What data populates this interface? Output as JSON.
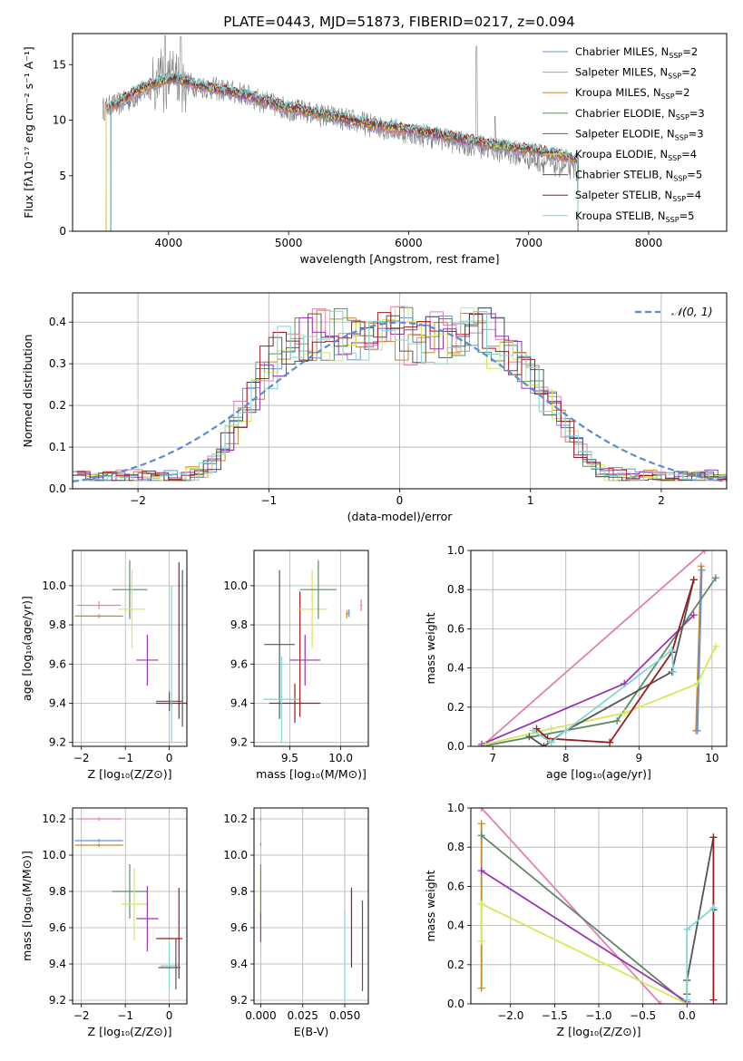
{
  "figure_title": "PLATE=0443, MJD=51873, FIBERID=0217, z=0.094",
  "colors": {
    "Chabrier MILES": "#6a8fd6",
    "Salpeter MILES": "#e27fb2",
    "Kroupa MILES": "#c5882a",
    "Chabrier ELODIE": "#5f8a64",
    "Salpeter ELODIE": "#9a35b0",
    "Kroupa ELODIE": "#d4e85a",
    "Chabrier STELIB": "#555555",
    "Salpeter STELIB": "#9a1c1c",
    "Kroupa STELIB": "#7fd6d6",
    "data": "#808080",
    "normal": "#5b8bd6"
  },
  "chart_data": [
    {
      "id": "spectrum",
      "type": "line",
      "title": "",
      "xlabel": "wavelength [Angstrom, rest frame]",
      "ylabel": "Flux [fλ10⁻¹⁷ erg cm⁻² s⁻¹ A⁻¹]",
      "xlim": [
        3200,
        8650
      ],
      "ylim": [
        0,
        17.8
      ],
      "xticks": [
        4000,
        5000,
        6000,
        7000,
        8000
      ],
      "yticks": [
        0,
        5,
        10,
        15
      ],
      "legend_position": "top-right",
      "legend": [
        {
          "name": "Chabrier MILES, N",
          "sub": "SSP",
          "suffix": "=2"
        },
        {
          "name": "Salpeter MILES, N",
          "sub": "SSP",
          "suffix": "=2"
        },
        {
          "name": "Kroupa MILES, N",
          "sub": "SSP",
          "suffix": "=2"
        },
        {
          "name": "Chabrier ELODIE, N",
          "sub": "SSP",
          "suffix": "=3"
        },
        {
          "name": "Salpeter ELODIE, N",
          "sub": "SSP",
          "suffix": "=3"
        },
        {
          "name": "Kroupa ELODIE, N",
          "sub": "SSP",
          "suffix": "=4"
        },
        {
          "name": "Chabrier STELIB, N",
          "sub": "SSP",
          "suffix": "=5"
        },
        {
          "name": "Salpeter STELIB, N",
          "sub": "SSP",
          "suffix": "=4"
        },
        {
          "name": "Kroupa STELIB, N",
          "sub": "SSP",
          "suffix": "=5"
        }
      ],
      "data_envelope_x": [
        3450,
        3500,
        3600,
        3700,
        3800,
        3900,
        3950,
        4000,
        4100,
        4200,
        4300,
        4400,
        4500,
        4600,
        4700,
        4800,
        4900,
        5000,
        5100,
        5200,
        5300,
        5400,
        5500,
        5600,
        5700,
        5800,
        5900,
        6000,
        6100,
        6200,
        6300,
        6400,
        6500,
        6600,
        6700,
        6800,
        6900,
        7000,
        7100,
        7200,
        7300,
        7400
      ],
      "data_envelope_y": [
        11.0,
        11.2,
        11.5,
        12.0,
        12.6,
        13.2,
        13.5,
        13.8,
        13.5,
        13.2,
        13.0,
        12.8,
        12.6,
        12.4,
        12.0,
        11.6,
        11.3,
        11.0,
        10.8,
        10.6,
        10.4,
        10.2,
        10.0,
        9.8,
        9.5,
        9.3,
        9.1,
        8.9,
        8.7,
        8.5,
        8.3,
        8.0,
        7.8,
        7.6,
        7.4,
        7.2,
        6.9,
        6.6,
        6.3,
        6.0,
        5.8,
        5.6
      ],
      "model_x": [
        3450,
        3550,
        3700,
        3850,
        3950,
        4050,
        4150,
        4300,
        4500,
        4700,
        4900,
        5100,
        5300,
        5500,
        5700,
        5900,
        6100,
        6300,
        6500,
        6700,
        6900,
        7100,
        7300,
        7420
      ],
      "model_y": [
        11.2,
        11.4,
        12.4,
        13.2,
        13.6,
        13.8,
        13.4,
        13.0,
        12.6,
        12.1,
        11.4,
        10.9,
        10.5,
        10.0,
        9.6,
        9.3,
        9.0,
        8.6,
        8.2,
        7.8,
        7.5,
        7.2,
        6.8,
        6.4
      ]
    },
    {
      "id": "residuals",
      "type": "line",
      "title": "",
      "xlabel": "(data-model)/error",
      "ylabel": "Normed distribution",
      "xlim": [
        -2.5,
        2.5
      ],
      "ylim": [
        0,
        0.47
      ],
      "xticks": [
        -2,
        -1,
        0,
        1,
        2
      ],
      "yticks": [
        0.0,
        0.1,
        0.2,
        0.3,
        0.4
      ],
      "grid": true,
      "legend_position": "top-right",
      "legend_label": "𝒩(0, 1)"
    },
    {
      "id": "age-vs-Z",
      "type": "scatter",
      "title": "",
      "xlabel": "Z [log₁₀(Z/Z⊙)]",
      "ylabel": "age  [log₁₀(age/yr)]",
      "xlim": [
        -2.2,
        0.4
      ],
      "ylim": [
        9.18,
        10.18
      ],
      "xticks": [
        -2,
        -1,
        0
      ],
      "yticks": [
        9.2,
        9.4,
        9.6,
        9.8,
        10.0
      ],
      "grid": true,
      "points": [
        {
          "model": "Salpeter MILES",
          "x": -1.6,
          "xerr": 0.5,
          "y": 9.9,
          "yerr": 0.02
        },
        {
          "model": "Kroupa MILES",
          "x": -1.6,
          "xerr": 0.55,
          "y": 9.845,
          "yerr": 0.01
        },
        {
          "model": "Chabrier ELODIE",
          "x": -0.9,
          "xerr": 0.4,
          "y": 9.98,
          "yerr": 0.15
        },
        {
          "model": "Kroupa ELODIE",
          "x": -0.85,
          "xerr": 0.3,
          "y": 9.88,
          "yerr": 0.2
        },
        {
          "model": "Salpeter ELODIE",
          "x": -0.5,
          "xerr": 0.25,
          "y": 9.62,
          "yerr": 0.13
        },
        {
          "model": "Chabrier STELIB",
          "x": 0.0,
          "xerr": 0.3,
          "y": 9.41,
          "yerr": 0.05
        },
        {
          "model": "Salpeter STELIB",
          "x": 0.05,
          "xerr": 0.35,
          "y": 9.4,
          "yerr": 0.02
        },
        {
          "model": "Salpeter STELIB",
          "x": 0.22,
          "xerr": 0.0,
          "y": 9.72,
          "yerr": 0.4
        },
        {
          "model": "Kroupa STELIB",
          "x": 0.05,
          "xerr": 0.0,
          "y": 9.6,
          "yerr": 0.4
        },
        {
          "model": "Chabrier STELIB",
          "x": 0.3,
          "xerr": 0.0,
          "y": 9.68,
          "yerr": 0.4
        }
      ]
    },
    {
      "id": "age-vs-mass",
      "type": "scatter",
      "title": "",
      "xlabel": "mass [log₁₀(M/M⊙)]",
      "ylabel": "",
      "xlim": [
        9.15,
        10.27
      ],
      "ylim": [
        9.18,
        10.18
      ],
      "xticks": [
        9.5,
        10.0
      ],
      "yticks": [
        9.2,
        9.4,
        9.6,
        9.8,
        10.0
      ],
      "grid": true,
      "points": [
        {
          "model": "Salpeter STELIB",
          "x": 9.55,
          "xerr": 0.25,
          "y": 9.4,
          "yerr": 0.1
        },
        {
          "model": "Chabrier STELIB",
          "x": 9.4,
          "xerr": 0.15,
          "y": 9.7,
          "yerr": 0.38
        },
        {
          "model": "Kroupa STELIB",
          "x": 9.42,
          "xerr": 0.18,
          "y": 9.42,
          "yerr": 0.22
        },
        {
          "model": "Salpeter STELIB",
          "x": 9.6,
          "xerr": 0.0,
          "y": 9.65,
          "yerr": 0.32
        },
        {
          "model": "Salpeter ELODIE",
          "x": 9.65,
          "xerr": 0.15,
          "y": 9.62,
          "yerr": 0.13
        },
        {
          "model": "Kroupa ELODIE",
          "x": 9.72,
          "xerr": 0.15,
          "y": 9.88,
          "yerr": 0.2
        },
        {
          "model": "Chabrier ELODIE",
          "x": 9.78,
          "xerr": 0.18,
          "y": 9.98,
          "yerr": 0.15
        },
        {
          "model": "Kroupa MILES",
          "x": 10.06,
          "xerr": 0.01,
          "y": 9.855,
          "yerr": 0.02
        },
        {
          "model": "Chabrier MILES",
          "x": 10.08,
          "xerr": 0.01,
          "y": 9.86,
          "yerr": 0.02
        },
        {
          "model": "Salpeter MILES",
          "x": 10.2,
          "xerr": 0.01,
          "y": 9.9,
          "yerr": 0.03
        }
      ]
    },
    {
      "id": "weight-vs-age",
      "type": "line",
      "title": "",
      "xlabel": "age  [log₁₀(age/yr)]",
      "ylabel": "mass weight",
      "xlim": [
        6.7,
        10.2
      ],
      "ylim": [
        0,
        1
      ],
      "xticks": [
        7,
        8,
        9,
        10
      ],
      "yticks": [
        0.0,
        0.2,
        0.4,
        0.6,
        0.8,
        1.0
      ],
      "grid": true,
      "series": [
        {
          "model": "Salpeter MILES",
          "x": [
            6.85,
            9.9
          ],
          "y": [
            0.0,
            1.0
          ]
        },
        {
          "model": "Kroupa MILES",
          "x": [
            9.78,
            9.85
          ],
          "y": [
            0.08,
            0.92
          ]
        },
        {
          "model": "Chabrier MILES",
          "x": [
            9.8,
            9.86
          ],
          "y": [
            0.08,
            0.9
          ]
        },
        {
          "model": "Chabrier ELODIE",
          "x": [
            6.85,
            8.7,
            10.05
          ],
          "y": [
            0.0,
            0.13,
            0.86
          ]
        },
        {
          "model": "Salpeter ELODIE",
          "x": [
            6.85,
            8.8,
            9.75
          ],
          "y": [
            0.01,
            0.32,
            0.67
          ]
        },
        {
          "model": "Kroupa ELODIE",
          "x": [
            6.9,
            7.8,
            8.8,
            9.8,
            10.05
          ],
          "y": [
            0.01,
            0.09,
            0.17,
            0.32,
            0.51
          ]
        },
        {
          "model": "Chabrier STELIB",
          "x": [
            7.5,
            7.7,
            8.0,
            9.45,
            9.75
          ],
          "y": [
            0.05,
            0.0,
            0.08,
            0.38,
            0.85
          ]
        },
        {
          "model": "Salpeter STELIB",
          "x": [
            7.6,
            7.75,
            8.6,
            9.45,
            9.75
          ],
          "y": [
            0.09,
            0.04,
            0.02,
            0.48,
            0.85
          ]
        },
        {
          "model": "Kroupa STELIB",
          "x": [
            7.55,
            7.8,
            8.0,
            9.45,
            9.47
          ],
          "y": [
            0.08,
            0.02,
            0.08,
            0.49,
            0.38
          ]
        }
      ]
    },
    {
      "id": "mass-vs-Z",
      "type": "scatter",
      "title": "",
      "xlabel": "Z [log₁₀(Z/Z⊙)]",
      "ylabel": "mass [log₁₀(M/M⊙)]",
      "xlim": [
        -2.2,
        0.4
      ],
      "ylim": [
        9.18,
        10.26
      ],
      "xticks": [
        -2,
        -1,
        0
      ],
      "yticks": [
        9.2,
        9.4,
        9.6,
        9.8,
        10.0,
        10.2
      ],
      "grid": true,
      "points": [
        {
          "model": "Salpeter MILES",
          "x": -1.6,
          "xerr": 0.5,
          "y": 10.2,
          "yerr": 0.01
        },
        {
          "model": "Chabrier MILES",
          "x": -1.6,
          "xerr": 0.55,
          "y": 10.08,
          "yerr": 0.01
        },
        {
          "model": "Kroupa MILES",
          "x": -1.6,
          "xerr": 0.55,
          "y": 10.055,
          "yerr": 0.01
        },
        {
          "model": "Chabrier ELODIE",
          "x": -0.9,
          "xerr": 0.4,
          "y": 9.8,
          "yerr": 0.15
        },
        {
          "model": "Kroupa ELODIE",
          "x": -0.8,
          "xerr": 0.3,
          "y": 9.73,
          "yerr": 0.2
        },
        {
          "model": "Salpeter ELODIE",
          "x": -0.5,
          "xerr": 0.25,
          "y": 9.65,
          "yerr": 0.18
        },
        {
          "model": "Salpeter STELIB",
          "x": 0.0,
          "xerr": 0.3,
          "y": 9.54,
          "yerr": 0.0
        },
        {
          "model": "Salpeter STELIB",
          "x": 0.22,
          "xerr": 0.0,
          "y": 9.57,
          "yerr": 0.25
        },
        {
          "model": "Kroupa STELIB",
          "x": 0.0,
          "xerr": 0.2,
          "y": 9.39,
          "yerr": 0.13
        },
        {
          "model": "Chabrier STELIB",
          "x": 0.0,
          "xerr": 0.25,
          "y": 9.38,
          "yerr": 0.0
        },
        {
          "model": "Chabrier STELIB",
          "x": 0.15,
          "xerr": 0.0,
          "y": 9.4,
          "yerr": 0.14
        }
      ]
    },
    {
      "id": "mass-vs-EBV",
      "type": "scatter",
      "title": "",
      "xlabel": "E(B-V)",
      "ylabel": "",
      "xlim": [
        -0.004,
        0.064
      ],
      "ylim": [
        9.18,
        10.26
      ],
      "xticks": [
        0.0,
        0.025,
        0.05
      ],
      "yticks": [
        9.2,
        9.4,
        9.6,
        9.8,
        10.0,
        10.2
      ],
      "grid": true,
      "points": [
        {
          "model": "Salpeter MILES",
          "x": 0.0,
          "xerr": 0.0,
          "y": 10.2,
          "yerr": 0.01
        },
        {
          "model": "Kroupa MILES",
          "x": 0.0,
          "xerr": 0.0,
          "y": 10.06,
          "yerr": 0.01
        },
        {
          "model": "Kroupa ELODIE",
          "x": 0.0,
          "xerr": 0.0,
          "y": 9.73,
          "yerr": 0.2
        },
        {
          "model": "Chabrier ELODIE",
          "x": 0.0,
          "xerr": 0.0,
          "y": 9.8,
          "yerr": 0.15
        },
        {
          "model": "Salpeter ELODIE",
          "x": 0.0,
          "xerr": 0.0,
          "y": 9.6,
          "yerr": 0.08
        },
        {
          "model": "Kroupa STELIB",
          "x": 0.05,
          "xerr": 0.0,
          "y": 9.45,
          "yerr": 0.25
        },
        {
          "model": "Salpeter STELIB",
          "x": 0.054,
          "xerr": 0.0,
          "y": 9.6,
          "yerr": 0.22
        },
        {
          "model": "Chabrier STELIB",
          "x": 0.0605,
          "xerr": 0.0,
          "y": 9.5,
          "yerr": 0.25
        }
      ]
    },
    {
      "id": "weight-vs-Z",
      "type": "line",
      "title": "",
      "xlabel": "Z [log₁₀(Z/Z⊙)]",
      "ylabel": "mass weight",
      "xlim": [
        -2.45,
        0.45
      ],
      "ylim": [
        0,
        1
      ],
      "xticks": [
        -2.0,
        -1.5,
        -1.0,
        -0.5,
        0.0
      ],
      "xtick_labels": [
        "−2.0",
        "−1.5",
        "−1.0",
        "−0.5",
        "0.0"
      ],
      "yticks": [
        0.0,
        0.2,
        0.4,
        0.6,
        0.8,
        1.0
      ],
      "grid": true,
      "series": [
        {
          "model": "Salpeter MILES",
          "x": [
            -2.33,
            -0.3
          ],
          "y": [
            1.0,
            0.0
          ]
        },
        {
          "model": "Kroupa MILES",
          "x": [
            -2.33,
            -2.33
          ],
          "y": [
            0.08,
            0.92
          ]
        },
        {
          "model": "Chabrier ELODIE",
          "x": [
            -2.33,
            0.0
          ],
          "y": [
            0.86,
            0.0
          ]
        },
        {
          "model": "Salpeter ELODIE",
          "x": [
            -2.33,
            0.0
          ],
          "y": [
            0.68,
            0.01
          ]
        },
        {
          "model": "Kroupa ELODIE",
          "x": [
            -2.33,
            -2.33,
            0.0
          ],
          "y": [
            0.32,
            0.51,
            0.0
          ]
        },
        {
          "model": "Chabrier STELIB",
          "x": [
            0.0,
            0.0,
            0.3
          ],
          "y": [
            0.05,
            0.12,
            0.85
          ]
        },
        {
          "model": "Salpeter STELIB",
          "x": [
            0.3,
            0.3,
            0.3
          ],
          "y": [
            0.02,
            0.48,
            0.85
          ]
        },
        {
          "model": "Kroupa STELIB",
          "x": [
            0.0,
            0.0,
            0.3
          ],
          "y": [
            0.02,
            0.38,
            0.49
          ]
        }
      ]
    }
  ]
}
